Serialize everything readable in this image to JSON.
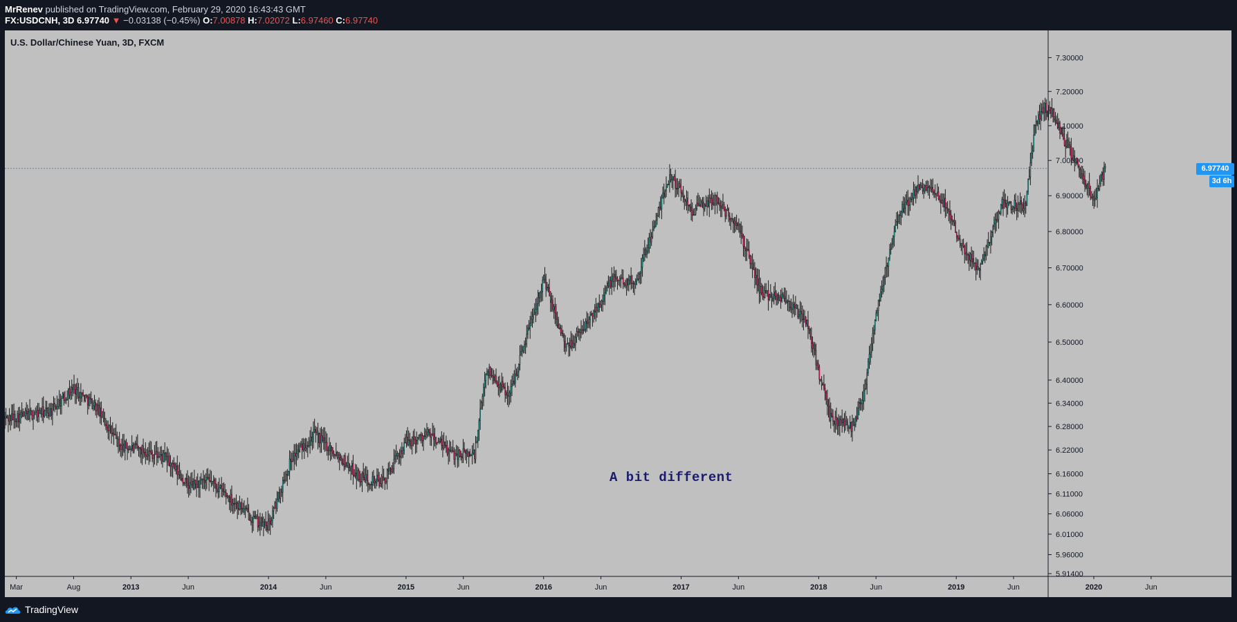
{
  "header": {
    "author": "MrRenev",
    "published_text": "published on TradingView.com, February 29, 2020 16:43:43 GMT",
    "symbol_line": "FX:USDCNH, 3D",
    "last_price": "6.97740",
    "change": "−0.03138 (−0.45%)",
    "open_label": "O:",
    "open_value": "7.00878",
    "high_label": "H:",
    "high_value": "7.02072",
    "low_label": "L:",
    "low_value": "6.97460",
    "close_label": "C:",
    "close_value": "6.97740"
  },
  "chart": {
    "legend_title": "U.S. Dollar/Chinese Yuan, 3D, FXCM",
    "annotation": "A bit different",
    "price_tag": "6.97740",
    "countdown_tag": "3d 6h"
  },
  "footer": {
    "brand": "TradingView"
  },
  "colors": {
    "background": "#c0c0c0",
    "frame": "#131722",
    "up_candle": "#26a69a",
    "down_candle": "#e91e63",
    "wick": "#1a1a1a",
    "last_price_line": "#2196f3",
    "annotation": "#1a1a6e"
  },
  "chart_data": {
    "type": "candlestick",
    "title": "U.S. Dollar/Chinese Yuan, 3D, FXCM",
    "ylim": [
      5.914,
      7.34
    ],
    "y_scale": "log",
    "y_ticks": [
      7.3,
      7.2,
      7.1,
      7.0,
      6.9,
      6.8,
      6.7,
      6.6,
      6.5,
      6.4,
      6.34,
      6.28,
      6.22,
      6.16,
      6.11,
      6.06,
      6.01,
      5.96,
      5.914
    ],
    "x_ticks": [
      "Mar",
      "Aug",
      "2013",
      "Jun",
      "2014",
      "Jun",
      "2015",
      "Jun",
      "2016",
      "Jun",
      "2017",
      "Jun",
      "2018",
      "Jun",
      "2019",
      "Jun",
      "2020",
      "Jun"
    ],
    "x_range": [
      "2012-02",
      "2020-08"
    ],
    "last_value": 6.9774,
    "price_path": [
      [
        "2012-02",
        6.3
      ],
      [
        "2012-04",
        6.31
      ],
      [
        "2012-06",
        6.32
      ],
      [
        "2012-08",
        6.38
      ],
      [
        "2012-10",
        6.33
      ],
      [
        "2012-12",
        6.23
      ],
      [
        "2013-02",
        6.22
      ],
      [
        "2013-04",
        6.2
      ],
      [
        "2013-06",
        6.13
      ],
      [
        "2013-08",
        6.14
      ],
      [
        "2013-10",
        6.09
      ],
      [
        "2013-12",
        6.04
      ],
      [
        "2014-01",
        6.03
      ],
      [
        "2014-03",
        6.2
      ],
      [
        "2014-05",
        6.26
      ],
      [
        "2014-07",
        6.21
      ],
      [
        "2014-09",
        6.15
      ],
      [
        "2014-11",
        6.14
      ],
      [
        "2015-01",
        6.24
      ],
      [
        "2015-03",
        6.26
      ],
      [
        "2015-05",
        6.21
      ],
      [
        "2015-07",
        6.21
      ],
      [
        "2015-08",
        6.43
      ],
      [
        "2015-10",
        6.36
      ],
      [
        "2015-12",
        6.57
      ],
      [
        "2016-01",
        6.67
      ],
      [
        "2016-03",
        6.48
      ],
      [
        "2016-05",
        6.56
      ],
      [
        "2016-07",
        6.67
      ],
      [
        "2016-09",
        6.66
      ],
      [
        "2016-11",
        6.85
      ],
      [
        "2016-12",
        6.96
      ],
      [
        "2017-02",
        6.86
      ],
      [
        "2017-04",
        6.89
      ],
      [
        "2017-06",
        6.81
      ],
      [
        "2017-08",
        6.63
      ],
      [
        "2017-10",
        6.62
      ],
      [
        "2017-12",
        6.55
      ],
      [
        "2018-02",
        6.3
      ],
      [
        "2018-04",
        6.28
      ],
      [
        "2018-05",
        6.38
      ],
      [
        "2018-06",
        6.58
      ],
      [
        "2018-08",
        6.85
      ],
      [
        "2018-10",
        6.93
      ],
      [
        "2018-12",
        6.88
      ],
      [
        "2019-02",
        6.73
      ],
      [
        "2019-03",
        6.7
      ],
      [
        "2019-05",
        6.88
      ],
      [
        "2019-07",
        6.87
      ],
      [
        "2019-08",
        7.12
      ],
      [
        "2019-09",
        7.16
      ],
      [
        "2019-11",
        7.02
      ],
      [
        "2020-01",
        6.89
      ],
      [
        "2020-02",
        6.98
      ]
    ]
  }
}
